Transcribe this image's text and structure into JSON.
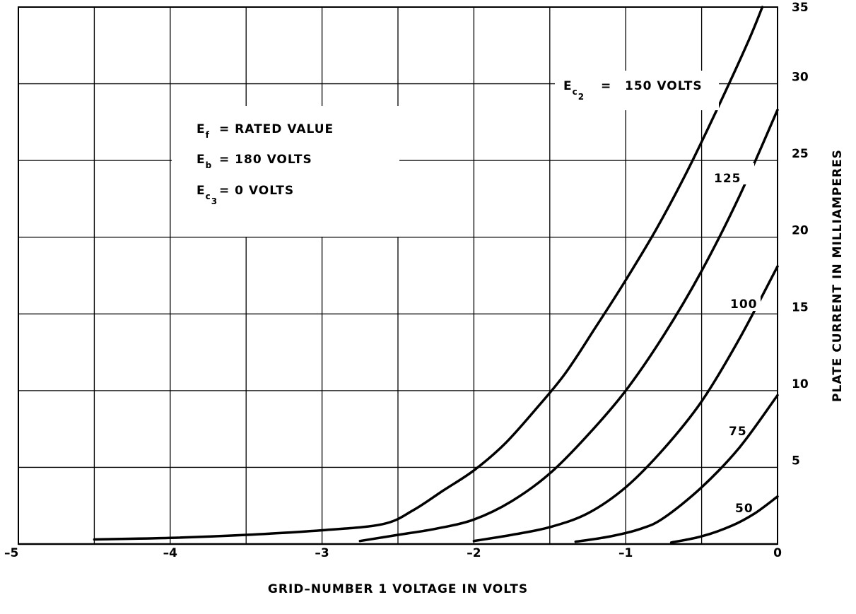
{
  "chart_data": {
    "type": "line",
    "xlabel": "GRID–NUMBER 1 VOLTAGE IN VOLTS",
    "ylabel": "PLATE CURRENT IN MILLIAMPERES",
    "xlim": [
      -5,
      0
    ],
    "ylim": [
      0,
      35
    ],
    "grid": true,
    "x_ticks": [
      {
        "value": -5,
        "label": "–5"
      },
      {
        "value": -4,
        "label": "–4"
      },
      {
        "value": -3,
        "label": "–3"
      },
      {
        "value": -2,
        "label": "–2"
      },
      {
        "value": -1,
        "label": "–1"
      },
      {
        "value": 0,
        "label": "0"
      }
    ],
    "y_ticks": [
      {
        "value": 5,
        "label": "5"
      },
      {
        "value": 10,
        "label": "10"
      },
      {
        "value": 15,
        "label": "15"
      },
      {
        "value": 20,
        "label": "20"
      },
      {
        "value": 25,
        "label": "25"
      },
      {
        "value": 30,
        "label": "30"
      },
      {
        "value": 35,
        "label": "35"
      }
    ],
    "conditions": [
      {
        "symbol": "E",
        "sub": "f",
        "rest": "=  RATED VALUE"
      },
      {
        "symbol": "E",
        "sub": "b",
        "rest": "=  180 VOLTS"
      },
      {
        "symbol": "E",
        "sub": "c",
        "subsub": "3",
        "rest": "=  0 VOLTS"
      }
    ],
    "series_label_prefix": {
      "symbol": "E",
      "sub": "c",
      "subsub": "2",
      "eq": "="
    },
    "series": [
      {
        "name": "150 VOLTS",
        "points": [
          [
            -4.5,
            0.3
          ],
          [
            -4,
            0.4
          ],
          [
            -3.5,
            0.6
          ],
          [
            -3,
            0.9
          ],
          [
            -2.6,
            1.3
          ],
          [
            -2.4,
            2.2
          ],
          [
            -2.2,
            3.5
          ],
          [
            -2,
            4.8
          ],
          [
            -1.8,
            6.5
          ],
          [
            -1.6,
            8.7
          ],
          [
            -1.4,
            11.1
          ],
          [
            -1.2,
            14.1
          ],
          [
            -1,
            17.2
          ],
          [
            -0.8,
            20.5
          ],
          [
            -0.6,
            24.2
          ],
          [
            -0.4,
            28.3
          ],
          [
            -0.2,
            32.6
          ],
          [
            -0.1,
            35
          ]
        ]
      },
      {
        "name": "125",
        "points": [
          [
            -2.75,
            0.2
          ],
          [
            -2.5,
            0.6
          ],
          [
            -2.25,
            1
          ],
          [
            -2,
            1.6
          ],
          [
            -1.75,
            2.8
          ],
          [
            -1.5,
            4.6
          ],
          [
            -1.25,
            7.1
          ],
          [
            -1,
            10
          ],
          [
            -0.75,
            13.6
          ],
          [
            -0.5,
            17.8
          ],
          [
            -0.25,
            22.7
          ],
          [
            0,
            28.3
          ]
        ]
      },
      {
        "name": "100",
        "points": [
          [
            -2,
            0.2
          ],
          [
            -1.75,
            0.6
          ],
          [
            -1.5,
            1.1
          ],
          [
            -1.25,
            2
          ],
          [
            -1,
            3.7
          ],
          [
            -0.75,
            6.2
          ],
          [
            -0.5,
            9.3
          ],
          [
            -0.25,
            13.4
          ],
          [
            0,
            18.1
          ]
        ]
      },
      {
        "name": "75",
        "points": [
          [
            -1.33,
            0.15
          ],
          [
            -1.1,
            0.5
          ],
          [
            -0.9,
            1
          ],
          [
            -0.75,
            1.7
          ],
          [
            -0.5,
            3.7
          ],
          [
            -0.25,
            6.3
          ],
          [
            0,
            9.7
          ]
        ]
      },
      {
        "name": "50",
        "points": [
          [
            -0.7,
            0.1
          ],
          [
            -0.5,
            0.5
          ],
          [
            -0.3,
            1.2
          ],
          [
            -0.15,
            2
          ],
          [
            0,
            3.1
          ]
        ]
      }
    ]
  }
}
